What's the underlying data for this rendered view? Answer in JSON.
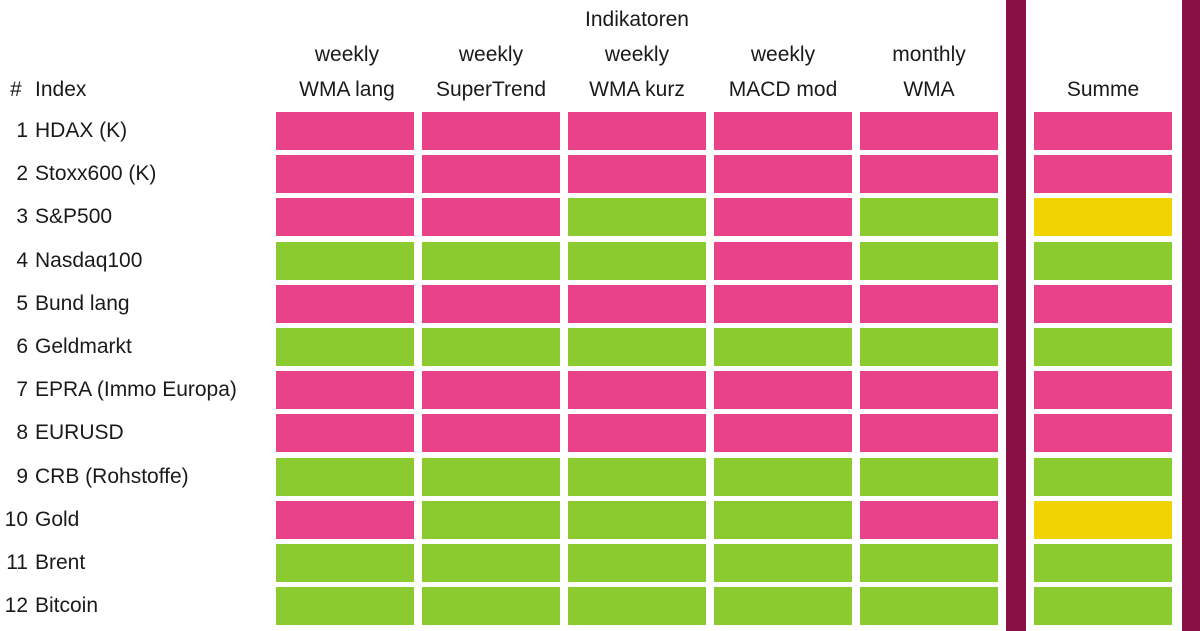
{
  "header": {
    "title": "Indikatoren",
    "hash_label": "#",
    "index_label": "Index",
    "summe_label": "Summe",
    "columns": [
      {
        "line1": "weekly",
        "line2": "WMA lang"
      },
      {
        "line1": "weekly",
        "line2": "SuperTrend"
      },
      {
        "line1": "weekly",
        "line2": "WMA kurz"
      },
      {
        "line1": "weekly",
        "line2": "MACD mod"
      },
      {
        "line1": "monthly",
        "line2": "WMA"
      }
    ]
  },
  "colors": {
    "pink": "#ea4289",
    "green": "#8ccb2f",
    "yellow": "#f0d300",
    "divider": "#861043"
  },
  "rows": [
    {
      "num": "1",
      "name": "HDAX (K)",
      "signals": [
        "pink",
        "pink",
        "pink",
        "pink",
        "pink"
      ],
      "summe": "pink"
    },
    {
      "num": "2",
      "name": "Stoxx600 (K)",
      "signals": [
        "pink",
        "pink",
        "pink",
        "pink",
        "pink"
      ],
      "summe": "pink"
    },
    {
      "num": "3",
      "name": "S&P500",
      "signals": [
        "pink",
        "pink",
        "green",
        "pink",
        "green"
      ],
      "summe": "yellow"
    },
    {
      "num": "4",
      "name": "Nasdaq100",
      "signals": [
        "green",
        "green",
        "green",
        "pink",
        "green"
      ],
      "summe": "green"
    },
    {
      "num": "5",
      "name": "Bund lang",
      "signals": [
        "pink",
        "pink",
        "pink",
        "pink",
        "pink"
      ],
      "summe": "pink"
    },
    {
      "num": "6",
      "name": "Geldmarkt",
      "signals": [
        "green",
        "green",
        "green",
        "green",
        "green"
      ],
      "summe": "green"
    },
    {
      "num": "7",
      "name": "EPRA (Immo Europa)",
      "signals": [
        "pink",
        "pink",
        "pink",
        "pink",
        "pink"
      ],
      "summe": "pink"
    },
    {
      "num": "8",
      "name": "EURUSD",
      "signals": [
        "pink",
        "pink",
        "pink",
        "pink",
        "pink"
      ],
      "summe": "pink"
    },
    {
      "num": "9",
      "name": "CRB (Rohstoffe)",
      "signals": [
        "green",
        "green",
        "green",
        "green",
        "green"
      ],
      "summe": "green"
    },
    {
      "num": "10",
      "name": "Gold",
      "signals": [
        "pink",
        "green",
        "green",
        "green",
        "pink"
      ],
      "summe": "yellow"
    },
    {
      "num": "11",
      "name": "Brent",
      "signals": [
        "green",
        "green",
        "green",
        "green",
        "green"
      ],
      "summe": "green"
    },
    {
      "num": "12",
      "name": "Bitcoin",
      "signals": [
        "green",
        "green",
        "green",
        "green",
        "green"
      ],
      "summe": "green"
    }
  ]
}
